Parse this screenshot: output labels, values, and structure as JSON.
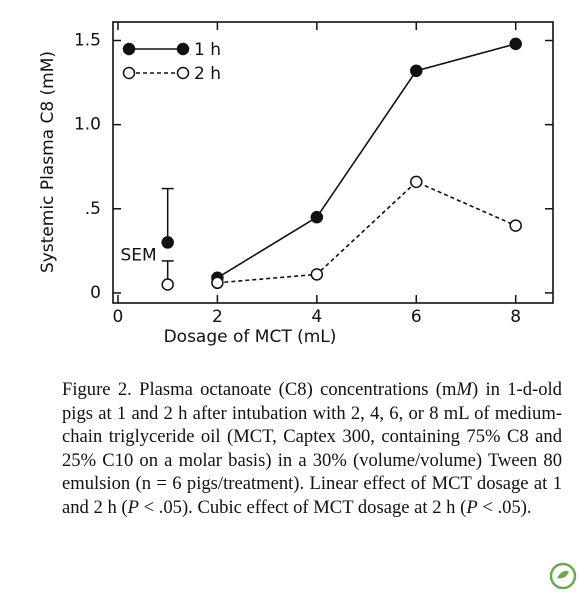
{
  "chart_data": {
    "type": "line",
    "y_label": "Systemic Plasma C8 (mM)",
    "x_label": "Dosage of MCT (mL)",
    "x": [
      2,
      4,
      6,
      8
    ],
    "series": [
      {
        "name": "1 h",
        "color": "#111111",
        "marker": "filled",
        "dash": "solid",
        "values": [
          0.09,
          0.45,
          1.32,
          1.48
        ]
      },
      {
        "name": "2 h",
        "color": "#111111",
        "marker": "open",
        "dash": "dashed",
        "values": [
          0.06,
          0.11,
          0.66,
          0.4
        ]
      }
    ],
    "sem": {
      "label": "SEM",
      "x": 1,
      "values": [
        0.3,
        0.05
      ],
      "errors": [
        0.32,
        0.14
      ]
    },
    "xlim": [
      -0.1,
      8.75
    ],
    "ylim": [
      -0.06,
      1.61
    ],
    "xticks": [
      0,
      2,
      4,
      6,
      8
    ],
    "yticks": [
      0,
      {
        "value": 0.5,
        "label": ".5"
      },
      {
        "value": 1.0,
        "label": "1.0"
      },
      {
        "value": 1.5,
        "label": "1.5"
      }
    ],
    "legend": "upper left",
    "grid": false
  },
  "caption": [
    {
      "text": "Figure 2. Plasma octanoate (C8) concentrations (m",
      "italic": false
    },
    {
      "text": "M",
      "italic": true
    },
    {
      "text": ") in 1-d-old pigs at 1 and 2 h after intubation with 2, 4, 6, or 8 mL of medium-chain triglyceride oil (MCT, Captex 300, containing 75% C8 and 25% C10 on a molar basis) in a 30% (volume/volume) Tween 80 emulsion (n = 6 pigs/treatment). Linear effect of MCT dosage at 1 and 2 h (",
      "italic": false
    },
    {
      "text": "P",
      "italic": true
    },
    {
      "text": " < .05). Cubic effect of MCT dosage at 2 h (",
      "italic": false
    },
    {
      "text": "P",
      "italic": true
    },
    {
      "text": " < .05).",
      "italic": false
    }
  ]
}
